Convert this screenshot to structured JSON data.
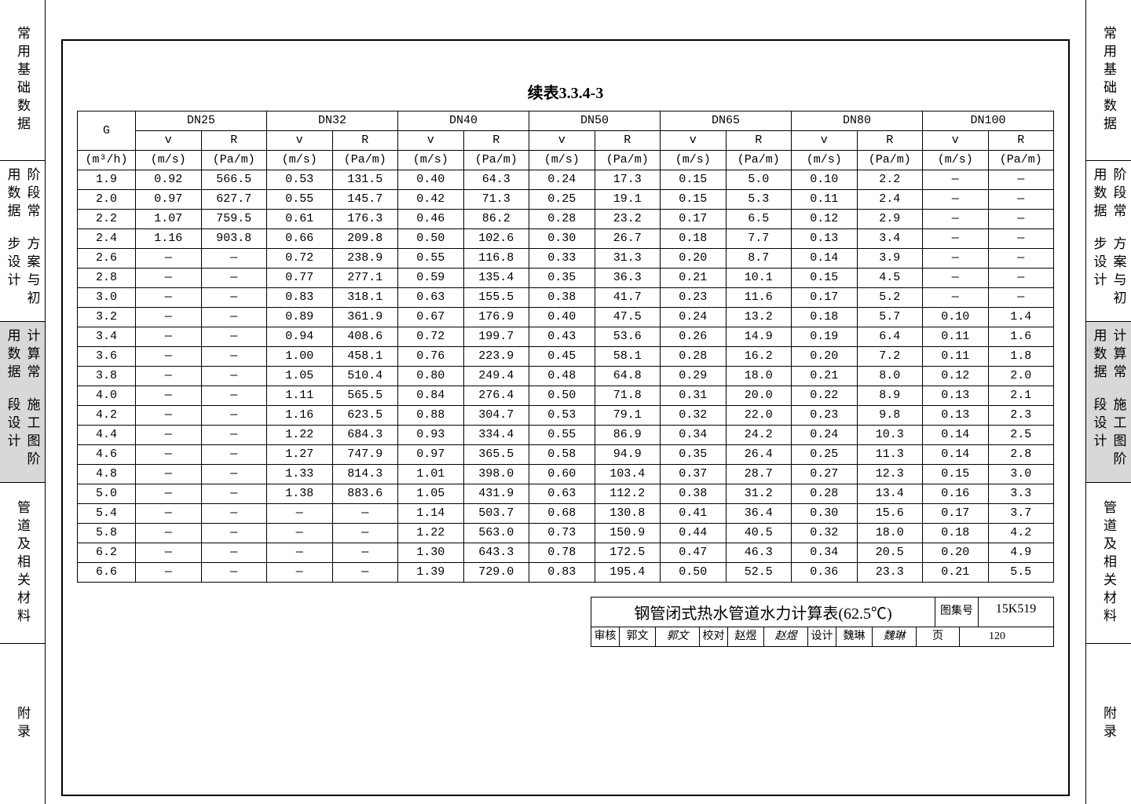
{
  "title": "续表3.3.4-3",
  "side_tabs": [
    {
      "label": "常用基础数据",
      "active": false,
      "double": false
    },
    {
      "label": [
        "阶段常用数据",
        "方案与初步设计"
      ],
      "active": false,
      "double": true
    },
    {
      "label": [
        "计算常用数据",
        "施工图阶段设计"
      ],
      "active": true,
      "double": true
    },
    {
      "label": "管道及相关材料",
      "active": false,
      "double": false
    },
    {
      "label": "附录",
      "active": false,
      "double": false
    }
  ],
  "table": {
    "g_header": "G",
    "g_unit": "(m³/h)",
    "dn_groups": [
      "DN25",
      "DN32",
      "DN40",
      "DN50",
      "DN65",
      "DN80",
      "DN100"
    ],
    "sub_headers": [
      "v",
      "R"
    ],
    "sub_units": [
      "(m/s)",
      "(Pa/m)"
    ],
    "rows": [
      [
        "1.9",
        "0.92",
        "566.5",
        "0.53",
        "131.5",
        "0.40",
        "64.3",
        "0.24",
        "17.3",
        "0.15",
        "5.0",
        "0.10",
        "2.2",
        "—",
        "—"
      ],
      [
        "2.0",
        "0.97",
        "627.7",
        "0.55",
        "145.7",
        "0.42",
        "71.3",
        "0.25",
        "19.1",
        "0.15",
        "5.3",
        "0.11",
        "2.4",
        "—",
        "—"
      ],
      [
        "2.2",
        "1.07",
        "759.5",
        "0.61",
        "176.3",
        "0.46",
        "86.2",
        "0.28",
        "23.2",
        "0.17",
        "6.5",
        "0.12",
        "2.9",
        "—",
        "—"
      ],
      [
        "2.4",
        "1.16",
        "903.8",
        "0.66",
        "209.8",
        "0.50",
        "102.6",
        "0.30",
        "26.7",
        "0.18",
        "7.7",
        "0.13",
        "3.4",
        "—",
        "—"
      ],
      [
        "2.6",
        "—",
        "—",
        "0.72",
        "238.9",
        "0.55",
        "116.8",
        "0.33",
        "31.3",
        "0.20",
        "8.7",
        "0.14",
        "3.9",
        "—",
        "—"
      ],
      [
        "2.8",
        "—",
        "—",
        "0.77",
        "277.1",
        "0.59",
        "135.4",
        "0.35",
        "36.3",
        "0.21",
        "10.1",
        "0.15",
        "4.5",
        "—",
        "—"
      ],
      [
        "3.0",
        "—",
        "—",
        "0.83",
        "318.1",
        "0.63",
        "155.5",
        "0.38",
        "41.7",
        "0.23",
        "11.6",
        "0.17",
        "5.2",
        "—",
        "—"
      ],
      [
        "3.2",
        "—",
        "—",
        "0.89",
        "361.9",
        "0.67",
        "176.9",
        "0.40",
        "47.5",
        "0.24",
        "13.2",
        "0.18",
        "5.7",
        "0.10",
        "1.4"
      ],
      [
        "3.4",
        "—",
        "—",
        "0.94",
        "408.6",
        "0.72",
        "199.7",
        "0.43",
        "53.6",
        "0.26",
        "14.9",
        "0.19",
        "6.4",
        "0.11",
        "1.6"
      ],
      [
        "3.6",
        "—",
        "—",
        "1.00",
        "458.1",
        "0.76",
        "223.9",
        "0.45",
        "58.1",
        "0.28",
        "16.2",
        "0.20",
        "7.2",
        "0.11",
        "1.8"
      ],
      [
        "3.8",
        "—",
        "—",
        "1.05",
        "510.4",
        "0.80",
        "249.4",
        "0.48",
        "64.8",
        "0.29",
        "18.0",
        "0.21",
        "8.0",
        "0.12",
        "2.0"
      ],
      [
        "4.0",
        "—",
        "—",
        "1.11",
        "565.5",
        "0.84",
        "276.4",
        "0.50",
        "71.8",
        "0.31",
        "20.0",
        "0.22",
        "8.9",
        "0.13",
        "2.1"
      ],
      [
        "4.2",
        "—",
        "—",
        "1.16",
        "623.5",
        "0.88",
        "304.7",
        "0.53",
        "79.1",
        "0.32",
        "22.0",
        "0.23",
        "9.8",
        "0.13",
        "2.3"
      ],
      [
        "4.4",
        "—",
        "—",
        "1.22",
        "684.3",
        "0.93",
        "334.4",
        "0.55",
        "86.9",
        "0.34",
        "24.2",
        "0.24",
        "10.3",
        "0.14",
        "2.5"
      ],
      [
        "4.6",
        "—",
        "—",
        "1.27",
        "747.9",
        "0.97",
        "365.5",
        "0.58",
        "94.9",
        "0.35",
        "26.4",
        "0.25",
        "11.3",
        "0.14",
        "2.8"
      ],
      [
        "4.8",
        "—",
        "—",
        "1.33",
        "814.3",
        "1.01",
        "398.0",
        "0.60",
        "103.4",
        "0.37",
        "28.7",
        "0.27",
        "12.3",
        "0.15",
        "3.0"
      ],
      [
        "5.0",
        "—",
        "—",
        "1.38",
        "883.6",
        "1.05",
        "431.9",
        "0.63",
        "112.2",
        "0.38",
        "31.2",
        "0.28",
        "13.4",
        "0.16",
        "3.3"
      ],
      [
        "5.4",
        "—",
        "—",
        "—",
        "—",
        "1.14",
        "503.7",
        "0.68",
        "130.8",
        "0.41",
        "36.4",
        "0.30",
        "15.6",
        "0.17",
        "3.7"
      ],
      [
        "5.8",
        "—",
        "—",
        "—",
        "—",
        "1.22",
        "563.0",
        "0.73",
        "150.9",
        "0.44",
        "40.5",
        "0.32",
        "18.0",
        "0.18",
        "4.2"
      ],
      [
        "6.2",
        "—",
        "—",
        "—",
        "—",
        "1.30",
        "643.3",
        "0.78",
        "172.5",
        "0.47",
        "46.3",
        "0.34",
        "20.5",
        "0.20",
        "4.9"
      ],
      [
        "6.6",
        "—",
        "—",
        "—",
        "—",
        "1.39",
        "729.0",
        "0.83",
        "195.4",
        "0.50",
        "52.5",
        "0.36",
        "23.3",
        "0.21",
        "5.5"
      ]
    ]
  },
  "title_block": {
    "main_title": "钢管闭式热水管道水力计算表(62.5℃)",
    "sheet_lbl": "图集号",
    "sheet_no": "15K519",
    "review_lbl": "审核",
    "review_name": "郭文",
    "review_sig": "郭文",
    "check_lbl": "校对",
    "check_name": "赵煜",
    "check_sig": "赵煜",
    "design_lbl": "设计",
    "design_name": "魏琳",
    "design_sig": "魏琳",
    "page_lbl": "页",
    "page_no": "120"
  },
  "colors": {
    "background": "#ffffff",
    "border": "#000000",
    "tab_active_bg": "#d8d8d8"
  }
}
